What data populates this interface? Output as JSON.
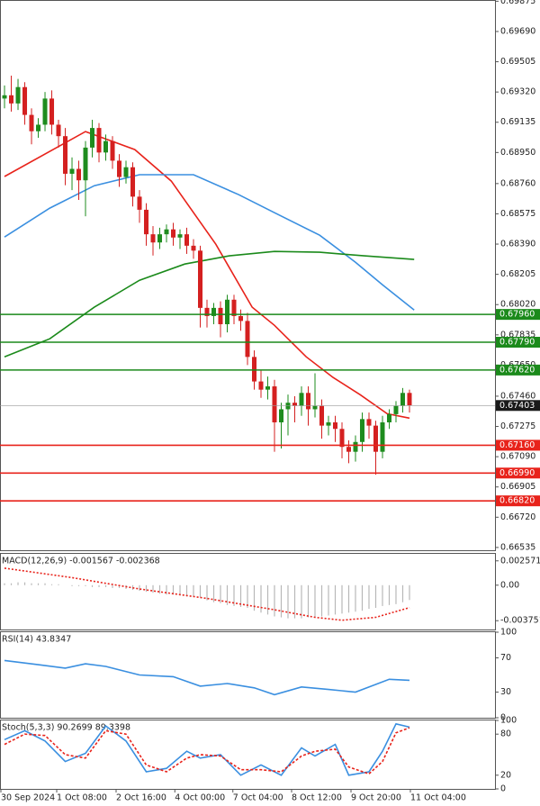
{
  "chart_data": [
    {
      "type": "candlestick",
      "up_color": "#1e8c1e",
      "down_color": "#d42020",
      "open": [
        0.6928,
        0.693,
        0.6925,
        0.6935,
        0.6918,
        0.6908,
        0.6912,
        0.6928,
        0.6912,
        0.6905,
        0.6882,
        0.6885,
        0.6878,
        0.6898,
        0.691,
        0.6895,
        0.6902,
        0.689,
        0.688,
        0.6886,
        0.6868,
        0.686,
        0.6845,
        0.684,
        0.6845,
        0.6848,
        0.6843,
        0.6845,
        0.6838,
        0.6835,
        0.68,
        0.6795,
        0.68,
        0.679,
        0.6805,
        0.6795,
        0.6792,
        0.677,
        0.6755,
        0.675,
        0.6752,
        0.673,
        0.6738,
        0.6742,
        0.674,
        0.6748,
        0.6738,
        0.674,
        0.6728,
        0.673,
        0.6726,
        0.6715,
        0.6712,
        0.6718,
        0.6732,
        0.6728,
        0.6712,
        0.673,
        0.6735,
        0.674,
        0.6748
      ],
      "high": [
        0.6936,
        0.6942,
        0.694,
        0.6938,
        0.6922,
        0.6916,
        0.6932,
        0.6933,
        0.6915,
        0.691,
        0.6892,
        0.689,
        0.6902,
        0.6915,
        0.6913,
        0.6906,
        0.6905,
        0.6894,
        0.689,
        0.6889,
        0.6872,
        0.6864,
        0.685,
        0.6849,
        0.6851,
        0.6852,
        0.6848,
        0.6849,
        0.6842,
        0.6838,
        0.6805,
        0.6803,
        0.6804,
        0.6808,
        0.6808,
        0.6799,
        0.6797,
        0.6774,
        0.6762,
        0.6758,
        0.6756,
        0.6742,
        0.6747,
        0.6746,
        0.6752,
        0.6752,
        0.676,
        0.6744,
        0.6734,
        0.6734,
        0.673,
        0.6719,
        0.6722,
        0.6736,
        0.6736,
        0.6731,
        0.6734,
        0.6738,
        0.6743,
        0.6751,
        0.675
      ],
      "low": [
        0.6922,
        0.692,
        0.6921,
        0.6912,
        0.69,
        0.6904,
        0.6908,
        0.6906,
        0.6898,
        0.6875,
        0.6872,
        0.6866,
        0.6856,
        0.6892,
        0.6889,
        0.689,
        0.6885,
        0.6874,
        0.6876,
        0.6862,
        0.6852,
        0.6838,
        0.6832,
        0.6836,
        0.684,
        0.6838,
        0.6836,
        0.6833,
        0.683,
        0.6788,
        0.6788,
        0.679,
        0.6782,
        0.6785,
        0.679,
        0.6786,
        0.6765,
        0.675,
        0.6745,
        0.6744,
        0.6712,
        0.6714,
        0.6722,
        0.673,
        0.6734,
        0.6728,
        0.6733,
        0.672,
        0.6722,
        0.6718,
        0.6708,
        0.6705,
        0.6706,
        0.6712,
        0.672,
        0.6698,
        0.6708,
        0.6726,
        0.673,
        0.6736,
        0.6736
      ],
      "close": [
        0.693,
        0.6925,
        0.6935,
        0.6918,
        0.6908,
        0.6912,
        0.6928,
        0.6912,
        0.6905,
        0.6882,
        0.6885,
        0.6878,
        0.6898,
        0.691,
        0.6895,
        0.6902,
        0.689,
        0.688,
        0.6886,
        0.6868,
        0.686,
        0.6845,
        0.684,
        0.6845,
        0.6848,
        0.6843,
        0.6845,
        0.6838,
        0.6835,
        0.68,
        0.6795,
        0.68,
        0.679,
        0.6805,
        0.6795,
        0.6792,
        0.677,
        0.6755,
        0.675,
        0.6752,
        0.673,
        0.6738,
        0.6742,
        0.674,
        0.6748,
        0.6738,
        0.674,
        0.6728,
        0.673,
        0.6726,
        0.6715,
        0.6712,
        0.6718,
        0.6732,
        0.6728,
        0.6712,
        0.673,
        0.6735,
        0.674,
        0.6748,
        0.67403
      ],
      "moving_averages": [
        {
          "color": "#e8231b",
          "x": [
            0,
            12,
            19.3,
            24.7,
            31.3,
            36.7,
            40,
            44.7,
            48.7,
            52.7,
            56.7,
            60
          ],
          "values": [
            0.68803,
            0.69078,
            0.68968,
            0.68775,
            0.68389,
            0.68004,
            0.67893,
            0.67701,
            0.67574,
            0.67469,
            0.67353,
            0.67326
          ]
        },
        {
          "color": "#3a8fe0",
          "x": [
            0,
            6.7,
            13.3,
            20,
            28,
            34.7,
            40,
            46.7,
            52,
            56,
            60.7
          ],
          "values": [
            0.68433,
            0.6861,
            0.68747,
            0.68814,
            0.68814,
            0.68692,
            0.68582,
            0.68444,
            0.68279,
            0.68141,
            0.67987
          ]
        },
        {
          "color": "#1b8a1b",
          "x": [
            0,
            6.7,
            13.3,
            20,
            26.7,
            33.3,
            40,
            46.7,
            53.3,
            60.7
          ],
          "values": [
            0.67701,
            0.67811,
            0.68004,
            0.68169,
            0.68268,
            0.68318,
            0.68345,
            0.6834,
            0.68318,
            0.68296
          ]
        }
      ],
      "levels": [
        {
          "value": 0.6796,
          "label": "0.67960",
          "color": "#1b8a1b"
        },
        {
          "value": 0.6779,
          "label": "0.67790",
          "color": "#1b8a1b"
        },
        {
          "value": 0.6762,
          "label": "0.67620",
          "color": "#1b8a1b"
        },
        {
          "value": 0.6716,
          "label": "0.67160",
          "color": "#e8231b"
        },
        {
          "value": 0.6699,
          "label": "0.66990",
          "color": "#e8231b"
        },
        {
          "value": 0.6682,
          "label": "0.66820",
          "color": "#e8231b"
        }
      ],
      "last_price": {
        "value": 0.67403,
        "label": "0.67403"
      },
      "ylim": [
        0.66518,
        0.69877
      ],
      "yticks": [
        {
          "value": 0.69875,
          "label": "0.69875"
        },
        {
          "value": 0.6969,
          "label": "0.69690"
        },
        {
          "value": 0.69505,
          "label": "0.69505"
        },
        {
          "value": 0.6932,
          "label": "0.69320"
        },
        {
          "value": 0.69135,
          "label": "0.69135"
        },
        {
          "value": 0.6895,
          "label": "0.68950"
        },
        {
          "value": 0.6876,
          "label": "0.68760"
        },
        {
          "value": 0.68575,
          "label": "0.68575"
        },
        {
          "value": 0.6839,
          "label": "0.68390"
        },
        {
          "value": 0.68205,
          "label": "0.68205"
        },
        {
          "value": 0.6802,
          "label": "0.68020"
        },
        {
          "value": 0.67835,
          "label": "0.67835"
        },
        {
          "value": 0.6765,
          "label": "0.67650"
        },
        {
          "value": 0.6746,
          "label": "0.67460"
        },
        {
          "value": 0.67275,
          "label": "0.67275"
        },
        {
          "value": 0.6709,
          "label": "0.67090"
        },
        {
          "value": 0.66905,
          "label": "0.66905"
        },
        {
          "value": 0.6672,
          "label": "0.66720"
        },
        {
          "value": 0.66535,
          "label": "0.66535"
        }
      ],
      "xlim": [
        -0.67,
        72.67
      ],
      "xticks": [
        {
          "value": -0.67,
          "label": "30 Sep 2024"
        },
        {
          "value": 7.6,
          "label": "1 Oct 08:00"
        },
        {
          "value": 16.4,
          "label": "2 Oct 16:00"
        },
        {
          "value": 25.1,
          "label": "4 Oct 00:00"
        },
        {
          "value": 33.7,
          "label": "7 Oct 04:00"
        },
        {
          "value": 42.4,
          "label": "8 Oct 12:00"
        },
        {
          "value": 51.2,
          "label": "9 Oct 20:00"
        },
        {
          "value": 60,
          "label": "11 Oct 04:00"
        }
      ]
    },
    {
      "type": "bar",
      "title": "MACD(12,26,9) -0.001567 -0.002368",
      "color": "#b8b8b8",
      "values": [
        0.0002,
        0.0002,
        0.0003,
        0.0003,
        0.0002,
        0.0002,
        0.0002,
        0.0001,
        0.0001,
        0,
        -0.0001,
        -0.0001,
        -0.0001,
        -0.0002,
        -0.0002,
        -0.0002,
        -0.0003,
        -0.0003,
        -0.0004,
        -0.0005,
        -0.0006,
        -0.0007,
        -0.0008,
        -0.0009,
        -0.001,
        -0.001,
        -0.0011,
        -0.0012,
        -0.0012,
        -0.0013,
        -0.0016,
        -0.0018,
        -0.0019,
        -0.0021,
        -0.0022,
        -0.0023,
        -0.0024,
        -0.0027,
        -0.0029,
        -0.0031,
        -0.0033,
        -0.0034,
        -0.0035,
        -0.0035,
        -0.0035,
        -0.0034,
        -0.0034,
        -0.0033,
        -0.0032,
        -0.0031,
        -0.003,
        -0.0029,
        -0.0028,
        -0.0027,
        -0.0025,
        -0.0024,
        -0.0022,
        -0.0021,
        -0.002,
        -0.0018,
        -0.001567
      ],
      "signal": {
        "color": "#e8231b",
        "x": [
          0,
          10,
          20,
          30,
          40,
          46,
          50,
          55,
          60
        ],
        "values": [
          0.0018,
          0.0008,
          -0.0004,
          -0.0014,
          -0.0026,
          -0.0034,
          -0.0037,
          -0.0034,
          -0.002368
        ]
      },
      "ylim": [
        -0.00468,
        0.00331
      ],
      "yticks": [
        {
          "value": 0.002571,
          "label": "0.002571"
        },
        {
          "value": 0,
          "label": "0.00"
        },
        {
          "value": -0.003751,
          "label": "-0.003751"
        }
      ]
    },
    {
      "type": "line",
      "title": "RSI(14) 43.8347",
      "color": "#3a8fe0",
      "x": [
        0,
        5,
        9,
        12,
        15,
        20,
        25,
        29,
        33,
        37,
        40,
        44,
        48,
        52,
        55,
        57,
        60
      ],
      "values": [
        67,
        62,
        58,
        63,
        60,
        50,
        48,
        37,
        40,
        35,
        27,
        36,
        33,
        30,
        39,
        45,
        43.8347
      ],
      "ylim": [
        0,
        100
      ],
      "yticks": [
        100,
        70,
        30,
        0
      ]
    },
    {
      "type": "line",
      "title": "Stoch(5,3,3) 90.2699 89.3398",
      "series": [
        {
          "color": "#3a8fe0",
          "x": [
            0,
            3,
            6,
            9,
            12,
            15,
            18,
            21,
            24,
            27,
            29,
            32,
            35,
            38,
            41,
            44,
            46,
            49,
            51,
            54,
            56,
            58,
            60
          ],
          "values": [
            72,
            85,
            70,
            40,
            52,
            92,
            70,
            25,
            30,
            55,
            45,
            50,
            20,
            35,
            20,
            60,
            48,
            65,
            20,
            25,
            55,
            95,
            90.2699
          ]
        },
        {
          "color": "#e8231b",
          "dash": "3 2",
          "x": [
            0,
            3,
            6,
            9,
            12,
            15,
            18,
            21,
            24,
            27,
            29,
            32,
            35,
            38,
            41,
            44,
            46,
            49,
            51,
            54,
            56,
            58,
            60
          ],
          "values": [
            65,
            80,
            78,
            50,
            45,
            85,
            80,
            35,
            25,
            45,
            50,
            48,
            28,
            28,
            25,
            48,
            55,
            58,
            32,
            22,
            40,
            82,
            89.3398
          ]
        }
      ],
      "ylim": [
        0,
        100
      ],
      "yticks": [
        100,
        80,
        20,
        0
      ]
    }
  ]
}
